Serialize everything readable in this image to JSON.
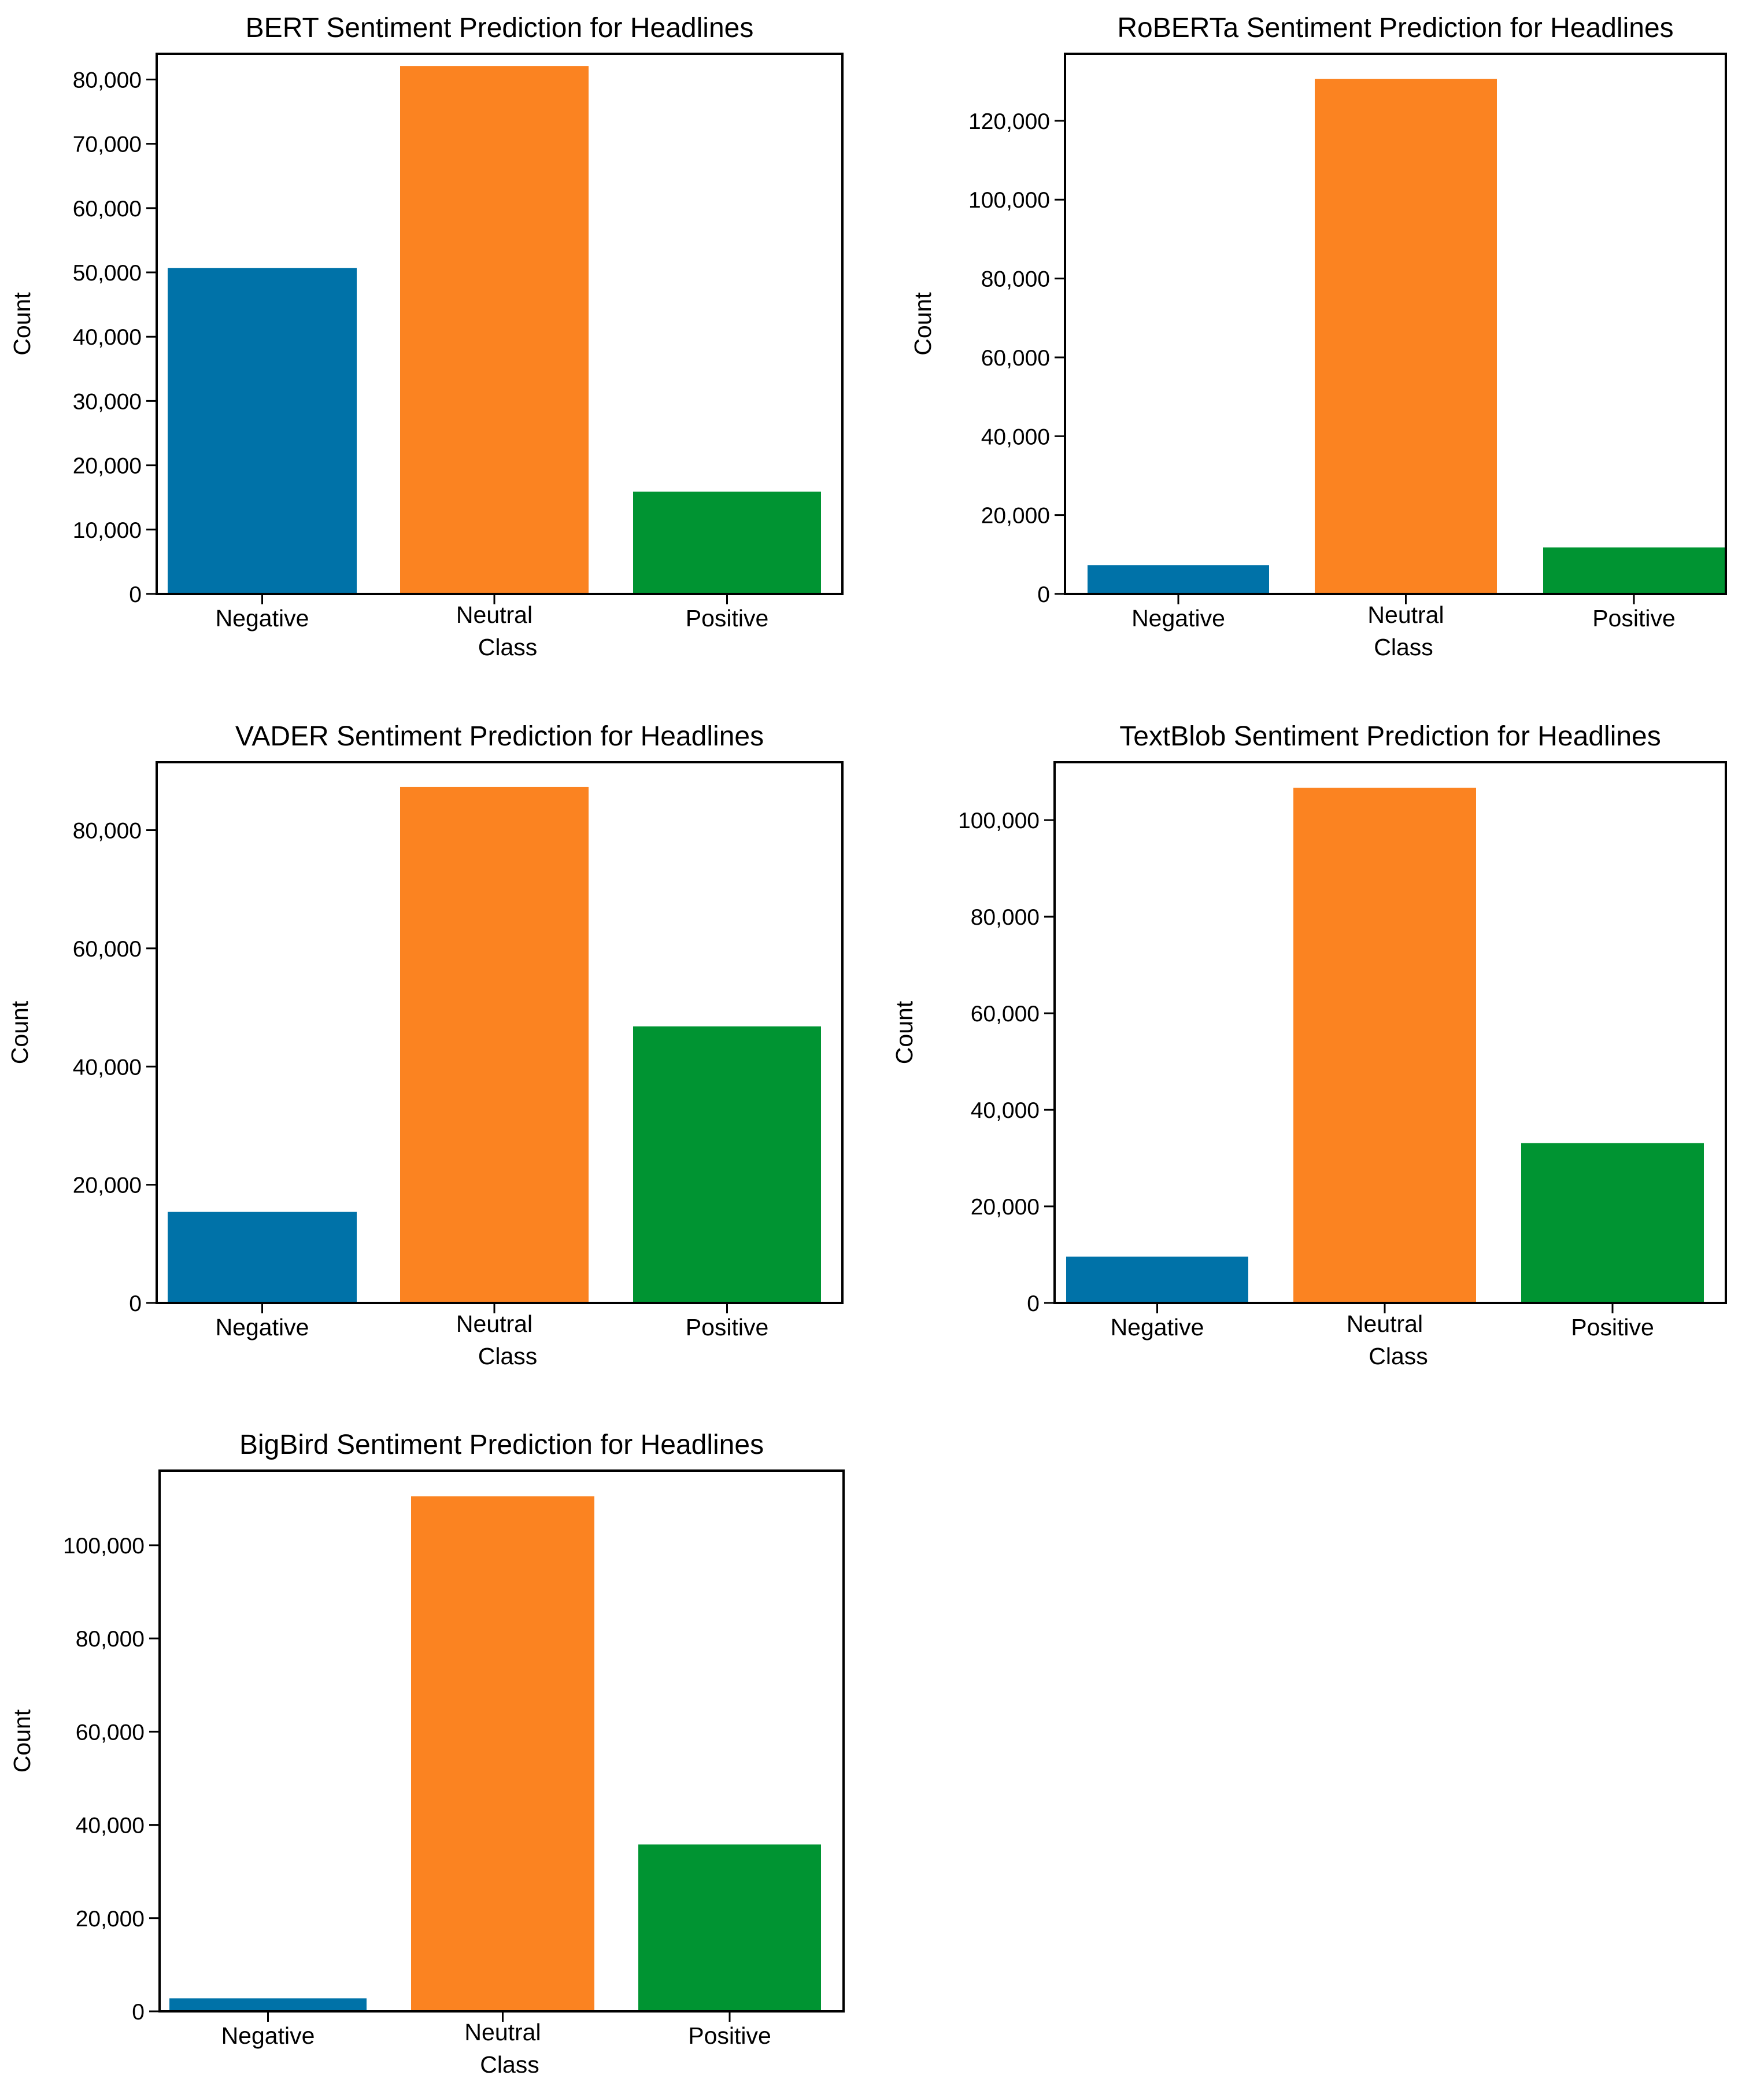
{
  "chart_data": [
    {
      "type": "bar",
      "title": "BERT Sentiment Prediction for Headlines",
      "xlabel": "Class",
      "ylabel": "Count",
      "categories": [
        "Negative",
        "Neutral",
        "Positive"
      ],
      "values": [
        50700,
        82100,
        15900
      ],
      "ylim": [
        0,
        84000
      ],
      "yticks": [
        0,
        10000,
        20000,
        30000,
        40000,
        50000,
        60000,
        70000,
        80000
      ],
      "ytick_labels": [
        "0",
        "10,000",
        "20,000",
        "30,000",
        "40,000",
        "50,000",
        "60,000",
        "70,000",
        "80,000"
      ],
      "grid": false
    },
    {
      "type": "bar",
      "title": "RoBERTa Sentiment Prediction for Headlines",
      "xlabel": "Class",
      "ylabel": "Count",
      "categories": [
        "Negative",
        "Neutral",
        "Positive"
      ],
      "values": [
        7300,
        130600,
        11800
      ],
      "ylim": [
        0,
        137000
      ],
      "yticks": [
        0,
        20000,
        40000,
        60000,
        80000,
        100000,
        120000
      ],
      "ytick_labels": [
        "0",
        "20,000",
        "40,000",
        "60,000",
        "80,000",
        "100,000",
        "120,000"
      ],
      "grid": false
    },
    {
      "type": "bar",
      "title": "VADER Sentiment Prediction for Headlines",
      "xlabel": "Class",
      "ylabel": "Count",
      "categories": [
        "Negative",
        "Neutral",
        "Positive"
      ],
      "values": [
        15400,
        87300,
        46800
      ],
      "ylim": [
        0,
        91500
      ],
      "yticks": [
        0,
        20000,
        40000,
        60000,
        80000
      ],
      "ytick_labels": [
        "0",
        "20,000",
        "40,000",
        "60,000",
        "80,000"
      ],
      "grid": false
    },
    {
      "type": "bar",
      "title": "TextBlob Sentiment Prediction for Headlines",
      "xlabel": "Class",
      "ylabel": "Count",
      "categories": [
        "Negative",
        "Neutral",
        "Positive"
      ],
      "values": [
        9600,
        106700,
        33100
      ],
      "ylim": [
        0,
        112000
      ],
      "yticks": [
        0,
        20000,
        40000,
        60000,
        80000,
        100000
      ],
      "ytick_labels": [
        "0",
        "20,000",
        "40,000",
        "60,000",
        "80,000",
        "100,000"
      ],
      "grid": false
    },
    {
      "type": "bar",
      "title": "BigBird Sentiment Prediction for Headlines",
      "xlabel": "Class",
      "ylabel": "Count",
      "categories": [
        "Negative",
        "Neutral",
        "Positive"
      ],
      "values": [
        2800,
        110500,
        35800
      ],
      "ylim": [
        0,
        116000
      ],
      "yticks": [
        0,
        20000,
        40000,
        60000,
        80000,
        100000
      ],
      "ytick_labels": [
        "0",
        "20,000",
        "40,000",
        "60,000",
        "80,000",
        "100,000"
      ],
      "grid": false
    }
  ],
  "colors": {
    "negative": "#0072a8",
    "neutral": "#fb8321",
    "positive": "#009432",
    "frame": "#000000"
  }
}
